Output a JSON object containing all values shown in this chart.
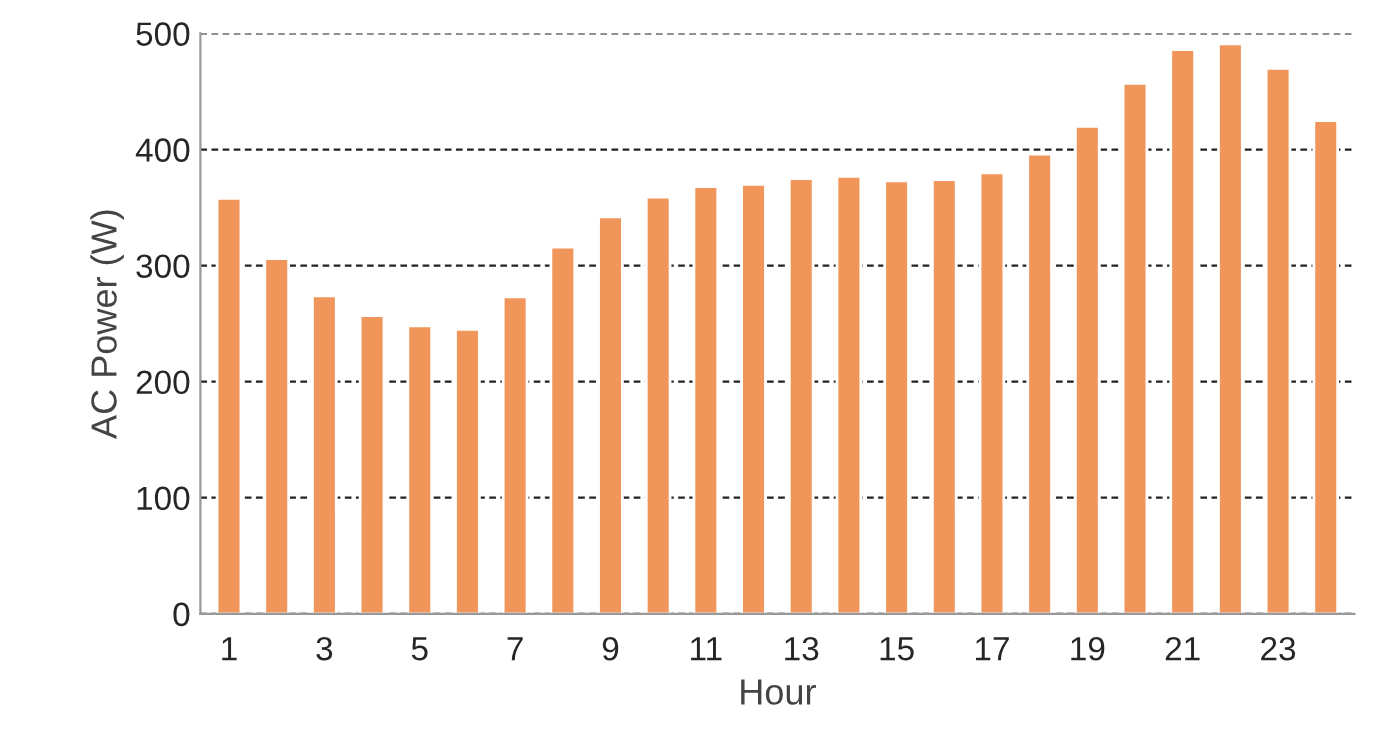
{
  "chart_data": {
    "type": "bar",
    "xlabel": "Hour",
    "ylabel": "AC Power (W)",
    "categories": [
      "1",
      null,
      "3",
      null,
      "5",
      null,
      "7",
      null,
      "9",
      null,
      "11",
      null,
      "13",
      null,
      "15",
      null,
      "17",
      null,
      "19",
      null,
      "21",
      null,
      "23",
      null
    ],
    "values": [
      358,
      306,
      274,
      257,
      248,
      245,
      273,
      316,
      342,
      359,
      368,
      370,
      375,
      377,
      373,
      374,
      380,
      396,
      420,
      457,
      486,
      491,
      470,
      425
    ],
    "color": "#f0965a",
    "ylim": [
      0,
      500
    ],
    "yticks": [
      0,
      100,
      200,
      300,
      400,
      500
    ],
    "grid": "y"
  }
}
